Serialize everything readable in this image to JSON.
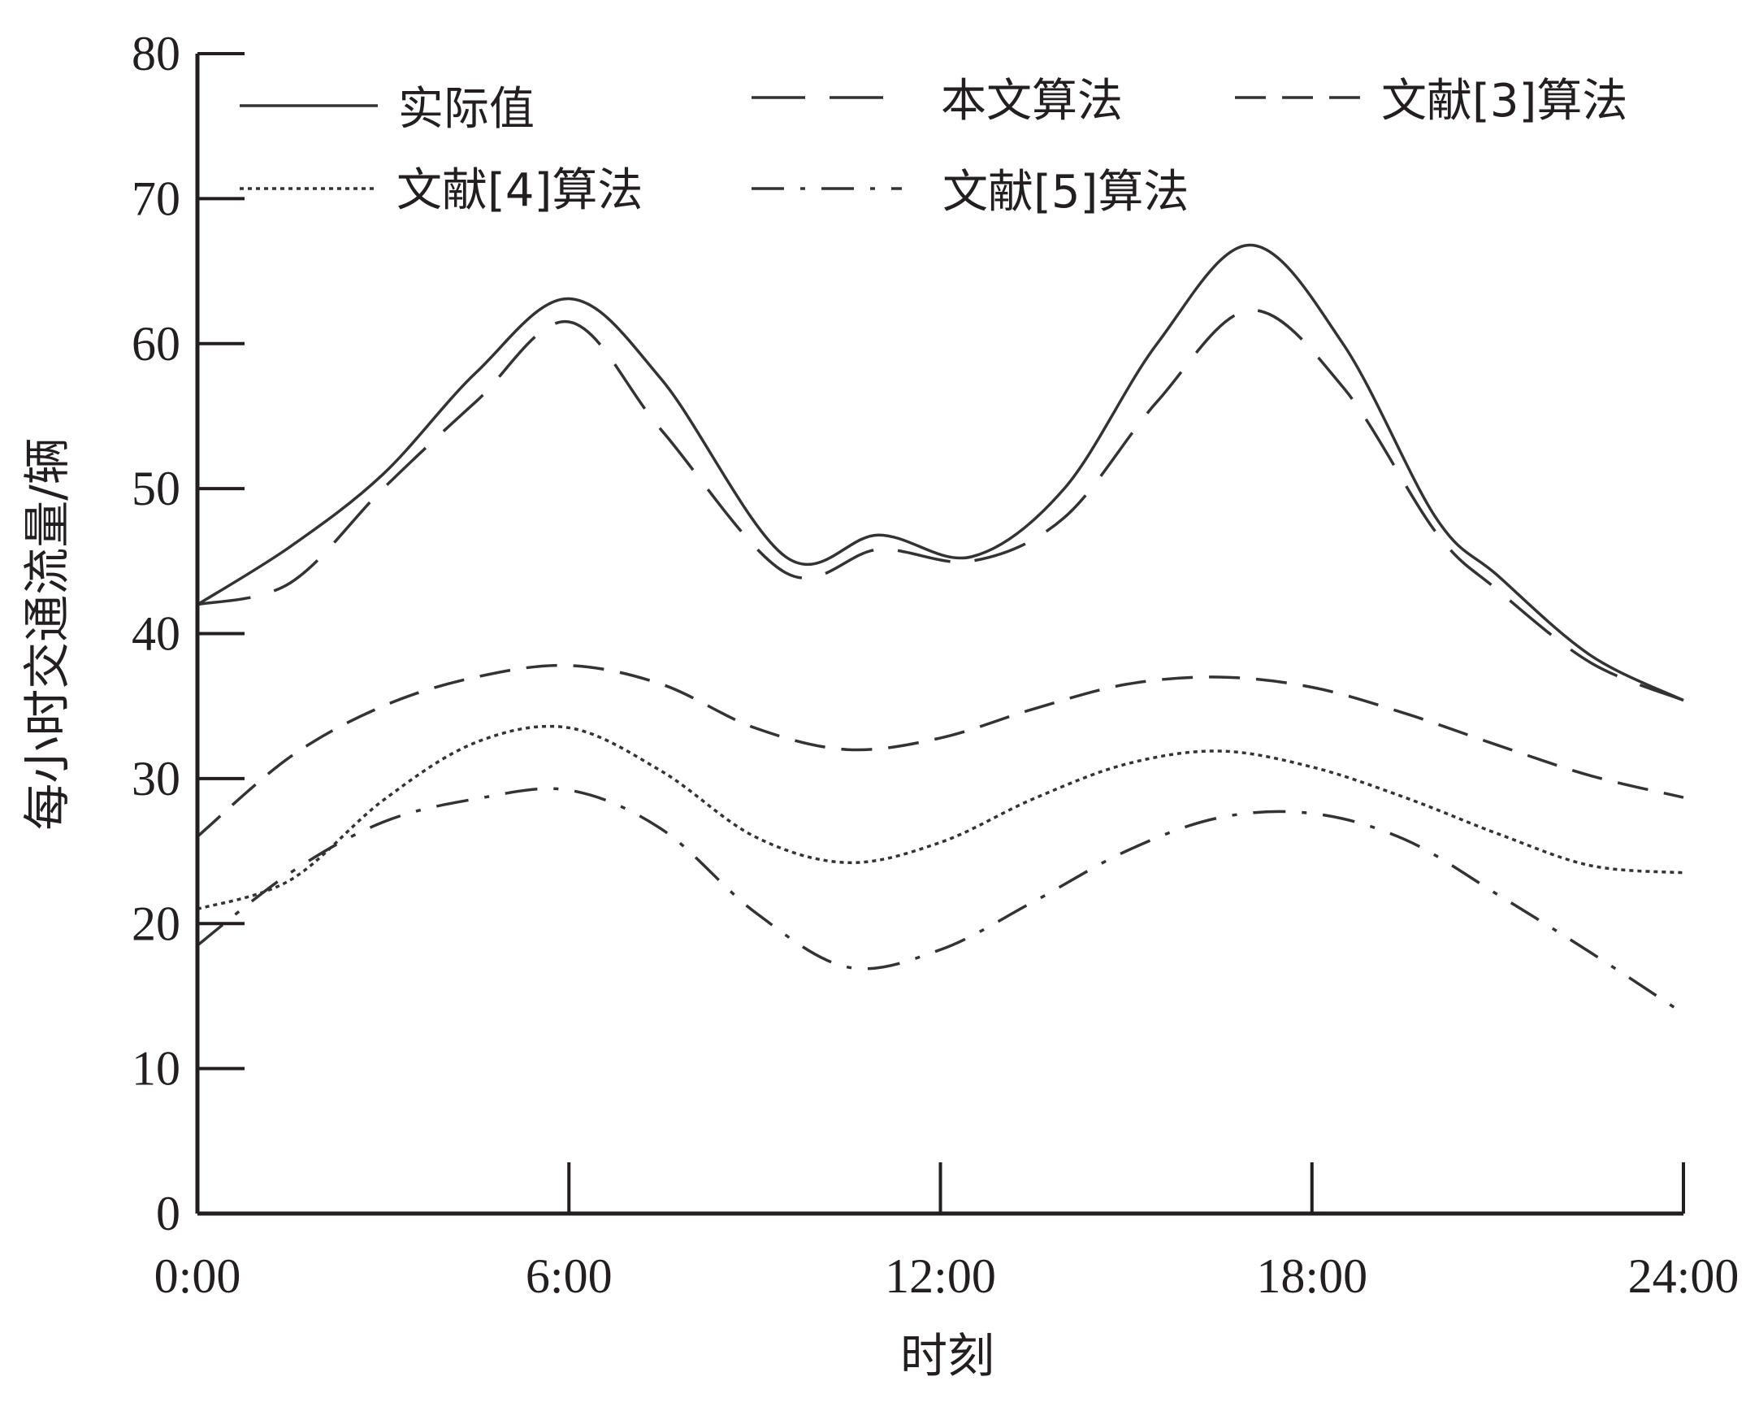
{
  "chart_data": {
    "type": "line",
    "xlabel": "时刻",
    "ylabel": "每小时交通流量/辆",
    "ylim": [
      0,
      80
    ],
    "xlim": [
      0,
      24
    ],
    "yticks": [
      0,
      10,
      20,
      30,
      40,
      50,
      60,
      70,
      80
    ],
    "xticks": [
      {
        "value": 0,
        "label": "0:00"
      },
      {
        "value": 6,
        "label": "6:00"
      },
      {
        "value": 12,
        "label": "12:00"
      },
      {
        "value": 18,
        "label": "18:00"
      },
      {
        "value": 24,
        "label": "24:00"
      }
    ],
    "grid": false,
    "legend_position": "top",
    "line_color": "#333333",
    "series": [
      {
        "name": "实际值",
        "style": "solid",
        "x": [
          0,
          1.5,
          3,
          4.5,
          6,
          7.5,
          9.5,
          11,
          12.5,
          14,
          15.5,
          17,
          18.5,
          20,
          21,
          22.5,
          24
        ],
        "y": [
          42,
          46,
          51,
          58,
          63.1,
          57.5,
          45.3,
          46.8,
          45.3,
          50,
          60,
          66.8,
          60,
          48,
          44,
          38.5,
          35.4
        ]
      },
      {
        "name": "本文算法",
        "style": "longdash",
        "x": [
          0,
          1.5,
          3,
          4.5,
          6,
          7.5,
          9.5,
          11,
          12.5,
          14,
          15.5,
          17,
          18.5,
          20,
          21,
          22.5,
          24
        ],
        "y": [
          42,
          43.5,
          50,
          56,
          61.5,
          54,
          44.2,
          45.8,
          45,
          48,
          56,
          62.3,
          57,
          47,
          43,
          38,
          35.4
        ]
      },
      {
        "name": "文献[3]算法",
        "style": "dash",
        "x": [
          0,
          1.5,
          3,
          4.5,
          6,
          7.5,
          9,
          10.5,
          12,
          13.5,
          15,
          16.5,
          18,
          19.5,
          21,
          22.5,
          24
        ],
        "y": [
          26,
          31.5,
          35,
          37,
          37.8,
          36.5,
          33.5,
          32,
          32.8,
          34.8,
          36.5,
          37,
          36.3,
          34.5,
          32.3,
          30.2,
          28.7
        ]
      },
      {
        "name": "文献[4]算法",
        "style": "dotted",
        "x": [
          0,
          1.5,
          3,
          4.5,
          6,
          7.5,
          9,
          10.5,
          12,
          13.5,
          15,
          16.5,
          18,
          19.5,
          21,
          22.5,
          24
        ],
        "y": [
          21,
          23,
          28.5,
          32.5,
          33.5,
          30.5,
          26,
          24.2,
          25.6,
          28.6,
          31,
          31.9,
          30.8,
          28.7,
          26.2,
          24,
          23.5
        ]
      },
      {
        "name": "文献[5]算法",
        "style": "dashdot",
        "x": [
          0,
          1.5,
          3,
          4.5,
          6,
          7.5,
          9,
          10.5,
          12,
          13.5,
          15,
          16.5,
          18,
          19.5,
          21,
          22.5,
          24
        ],
        "y": [
          18.5,
          23.5,
          27,
          28.6,
          29.2,
          26.5,
          20.8,
          17,
          18.2,
          21.5,
          25,
          27.3,
          27.6,
          25.8,
          22,
          18,
          13.8
        ]
      }
    ]
  }
}
